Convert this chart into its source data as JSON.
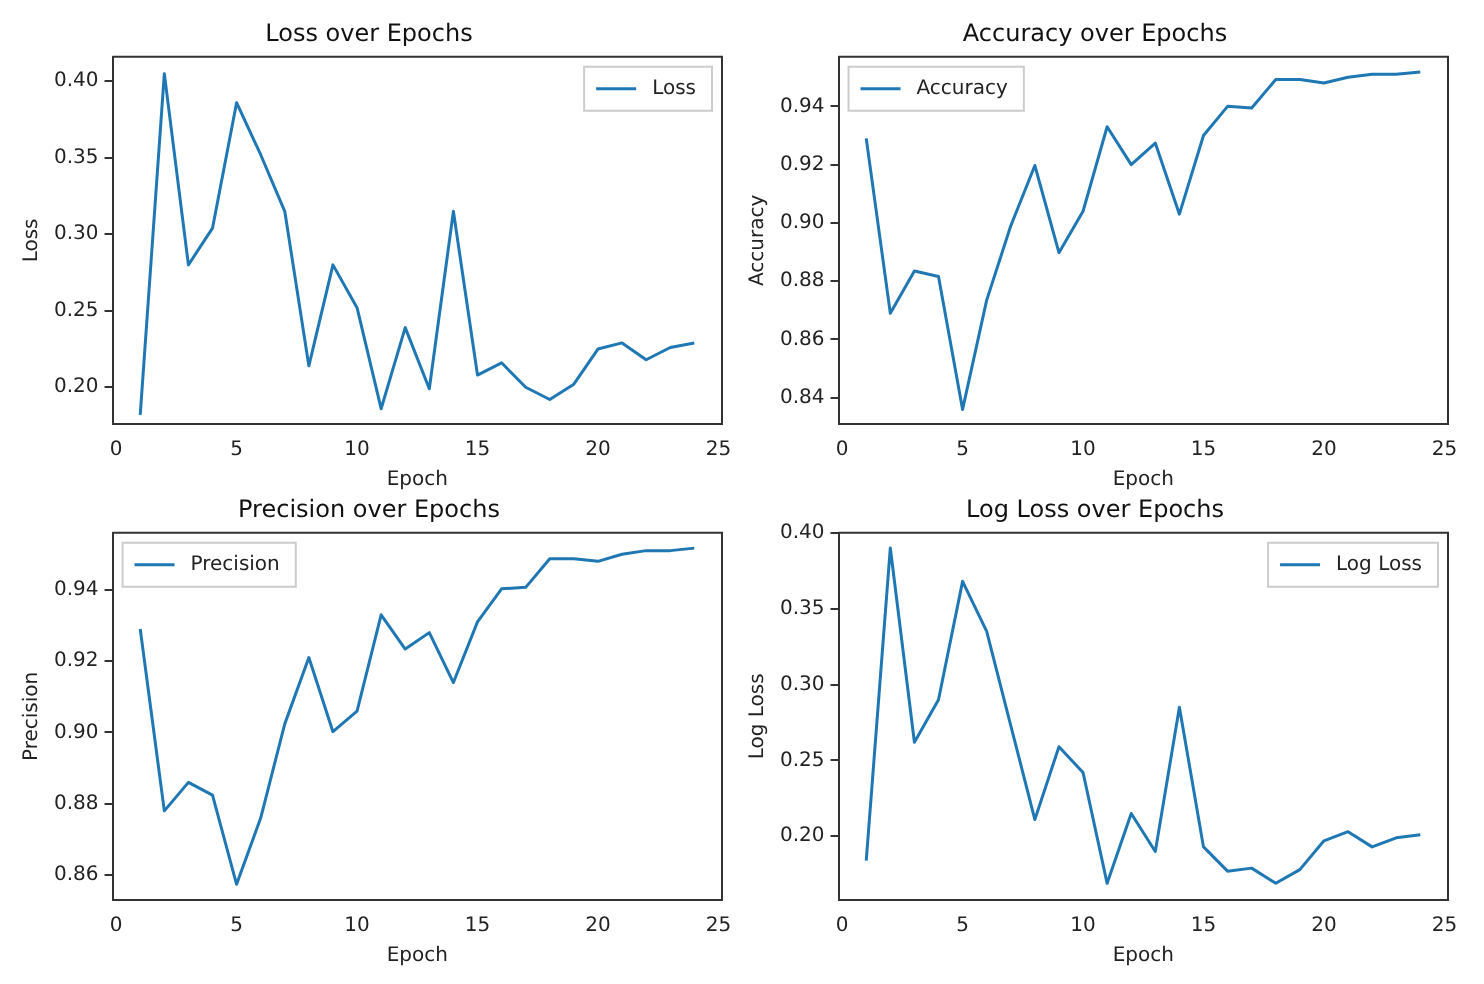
{
  "chart_data": [
    {
      "type": "line",
      "title": "Loss over Epochs",
      "xlabel": "Epoch",
      "ylabel": "Loss",
      "legend": "top right",
      "grid": false,
      "x": [
        1,
        2,
        3,
        4,
        5,
        6,
        7,
        8,
        9,
        10,
        11,
        12,
        13,
        14,
        15,
        16,
        17,
        18,
        19,
        20,
        21,
        22,
        23,
        24
      ],
      "series": [
        {
          "name": "Loss",
          "color": "#1f77b4",
          "values": [
            0.182,
            0.405,
            0.28,
            0.304,
            0.386,
            0.352,
            0.315,
            0.214,
            0.28,
            0.252,
            0.186,
            0.239,
            0.199,
            0.315,
            0.208,
            0.216,
            0.2,
            0.192,
            0.202,
            0.225,
            0.229,
            0.218,
            0.226,
            0.229
          ]
        }
      ],
      "xlim": [
        -0.15,
        25.15
      ],
      "xticks": [
        0,
        5,
        10,
        15,
        20,
        25
      ],
      "ylim": [
        0.176,
        0.416
      ],
      "yticks": [
        {
          "value": 0.2,
          "label": "0.20"
        },
        {
          "value": 0.25,
          "label": "0.25"
        },
        {
          "value": 0.3,
          "label": "0.30"
        },
        {
          "value": 0.35,
          "label": "0.35"
        },
        {
          "value": 0.4,
          "label": "0.40"
        }
      ]
    },
    {
      "type": "line",
      "title": "Accuracy over Epochs",
      "xlabel": "Epoch",
      "ylabel": "Accuracy",
      "legend": "top left",
      "grid": false,
      "x": [
        1,
        2,
        3,
        4,
        5,
        6,
        7,
        8,
        9,
        10,
        11,
        12,
        13,
        14,
        15,
        16,
        17,
        18,
        19,
        20,
        21,
        22,
        23,
        24
      ],
      "series": [
        {
          "name": "Accuracy",
          "color": "#1f77b4",
          "values": [
            0.929,
            0.869,
            0.8835,
            0.8816,
            0.836,
            0.8735,
            0.899,
            0.9197,
            0.8898,
            0.904,
            0.933,
            0.92,
            0.9274,
            0.903,
            0.93,
            0.94,
            0.9394,
            0.9492,
            0.9492,
            0.948,
            0.95,
            0.951,
            0.951,
            0.9518
          ]
        }
      ],
      "xlim": [
        -0.15,
        25.15
      ],
      "xticks": [
        0,
        5,
        10,
        15,
        20,
        25
      ],
      "ylim": [
        0.831,
        0.957
      ],
      "yticks": [
        {
          "value": 0.84,
          "label": "0.84"
        },
        {
          "value": 0.86,
          "label": "0.86"
        },
        {
          "value": 0.88,
          "label": "0.88"
        },
        {
          "value": 0.9,
          "label": "0.90"
        },
        {
          "value": 0.92,
          "label": "0.92"
        },
        {
          "value": 0.94,
          "label": "0.94"
        }
      ]
    },
    {
      "type": "line",
      "title": "Precision over Epochs",
      "xlabel": "Epoch",
      "ylabel": "Precision",
      "legend": "top left",
      "grid": false,
      "x": [
        1,
        2,
        3,
        4,
        5,
        6,
        7,
        8,
        9,
        10,
        11,
        12,
        13,
        14,
        15,
        16,
        17,
        18,
        19,
        20,
        21,
        22,
        23,
        24
      ],
      "series": [
        {
          "name": "Precision",
          "color": "#1f77b4",
          "values": [
            0.929,
            0.878,
            0.886,
            0.8824,
            0.8574,
            0.876,
            0.9024,
            0.921,
            0.9002,
            0.906,
            0.933,
            0.9234,
            0.928,
            0.914,
            0.931,
            0.9403,
            0.9407,
            0.9487,
            0.9487,
            0.948,
            0.95,
            0.951,
            0.951,
            0.9517
          ]
        }
      ],
      "xlim": [
        -0.15,
        25.15
      ],
      "xticks": [
        0,
        5,
        10,
        15,
        20,
        25
      ],
      "ylim": [
        0.853,
        0.956
      ],
      "yticks": [
        {
          "value": 0.86,
          "label": "0.86"
        },
        {
          "value": 0.88,
          "label": "0.88"
        },
        {
          "value": 0.9,
          "label": "0.90"
        },
        {
          "value": 0.92,
          "label": "0.92"
        },
        {
          "value": 0.94,
          "label": "0.94"
        }
      ]
    },
    {
      "type": "line",
      "title": "Log Loss over Epochs",
      "xlabel": "Epoch",
      "ylabel": "Log Loss",
      "legend": "top right",
      "grid": false,
      "x": [
        1,
        2,
        3,
        4,
        5,
        6,
        7,
        8,
        9,
        10,
        11,
        12,
        13,
        14,
        15,
        16,
        17,
        18,
        19,
        20,
        21,
        22,
        23,
        24
      ],
      "series": [
        {
          "name": "Log Loss",
          "color": "#1f77b4",
          "values": [
            0.184,
            0.39,
            0.262,
            0.29,
            0.368,
            0.335,
            0.273,
            0.211,
            0.259,
            0.242,
            0.169,
            0.215,
            0.19,
            0.285,
            0.193,
            0.177,
            0.179,
            0.169,
            0.178,
            0.197,
            0.203,
            0.193,
            0.199,
            0.201
          ]
        }
      ],
      "xlim": [
        -0.15,
        25.15
      ],
      "xticks": [
        0,
        5,
        10,
        15,
        20,
        25
      ],
      "ylim": [
        0.158,
        0.4
      ],
      "yticks": [
        {
          "value": 0.2,
          "label": "0.20"
        },
        {
          "value": 0.25,
          "label": "0.25"
        },
        {
          "value": 0.3,
          "label": "0.30"
        },
        {
          "value": 0.35,
          "label": "0.35"
        },
        {
          "value": 0.4,
          "label": "0.40"
        }
      ]
    }
  ]
}
